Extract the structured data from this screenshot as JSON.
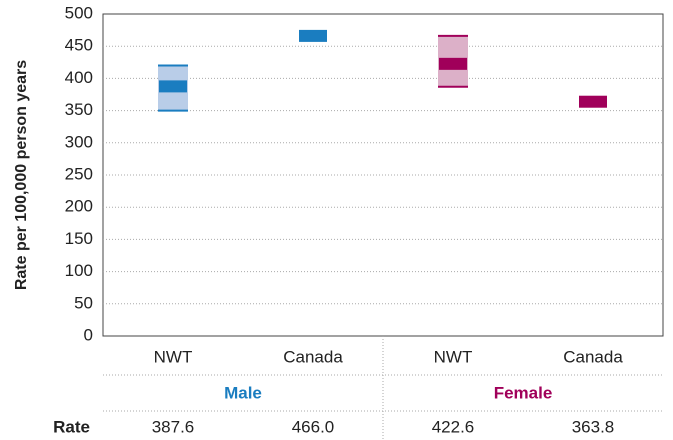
{
  "chart_data": {
    "type": "interval",
    "y_label": "Rate per 100,000 person years",
    "ylim": [
      0,
      500
    ],
    "yticks": [
      0,
      50,
      100,
      150,
      200,
      250,
      300,
      350,
      400,
      450,
      500
    ],
    "grid": true,
    "row_label": "Rate",
    "groups": [
      {
        "name": "Male",
        "color": "#1a7dc0",
        "ci_color": "#b9cde8",
        "categories": [
          "NWT",
          "Canada"
        ],
        "values": [
          387.6,
          466.0
        ],
        "value_labels": [
          "387.6",
          "466.0"
        ],
        "ci_lower": [
          350,
          null
        ],
        "ci_upper": [
          420,
          null
        ]
      },
      {
        "name": "Female",
        "color": "#a0005a",
        "ci_color": "#dcb0c8",
        "categories": [
          "NWT",
          "Canada"
        ],
        "values": [
          422.6,
          363.8
        ],
        "value_labels": [
          "422.6",
          "363.8"
        ],
        "ci_lower": [
          387,
          null
        ],
        "ci_upper": [
          466,
          null
        ]
      }
    ]
  }
}
